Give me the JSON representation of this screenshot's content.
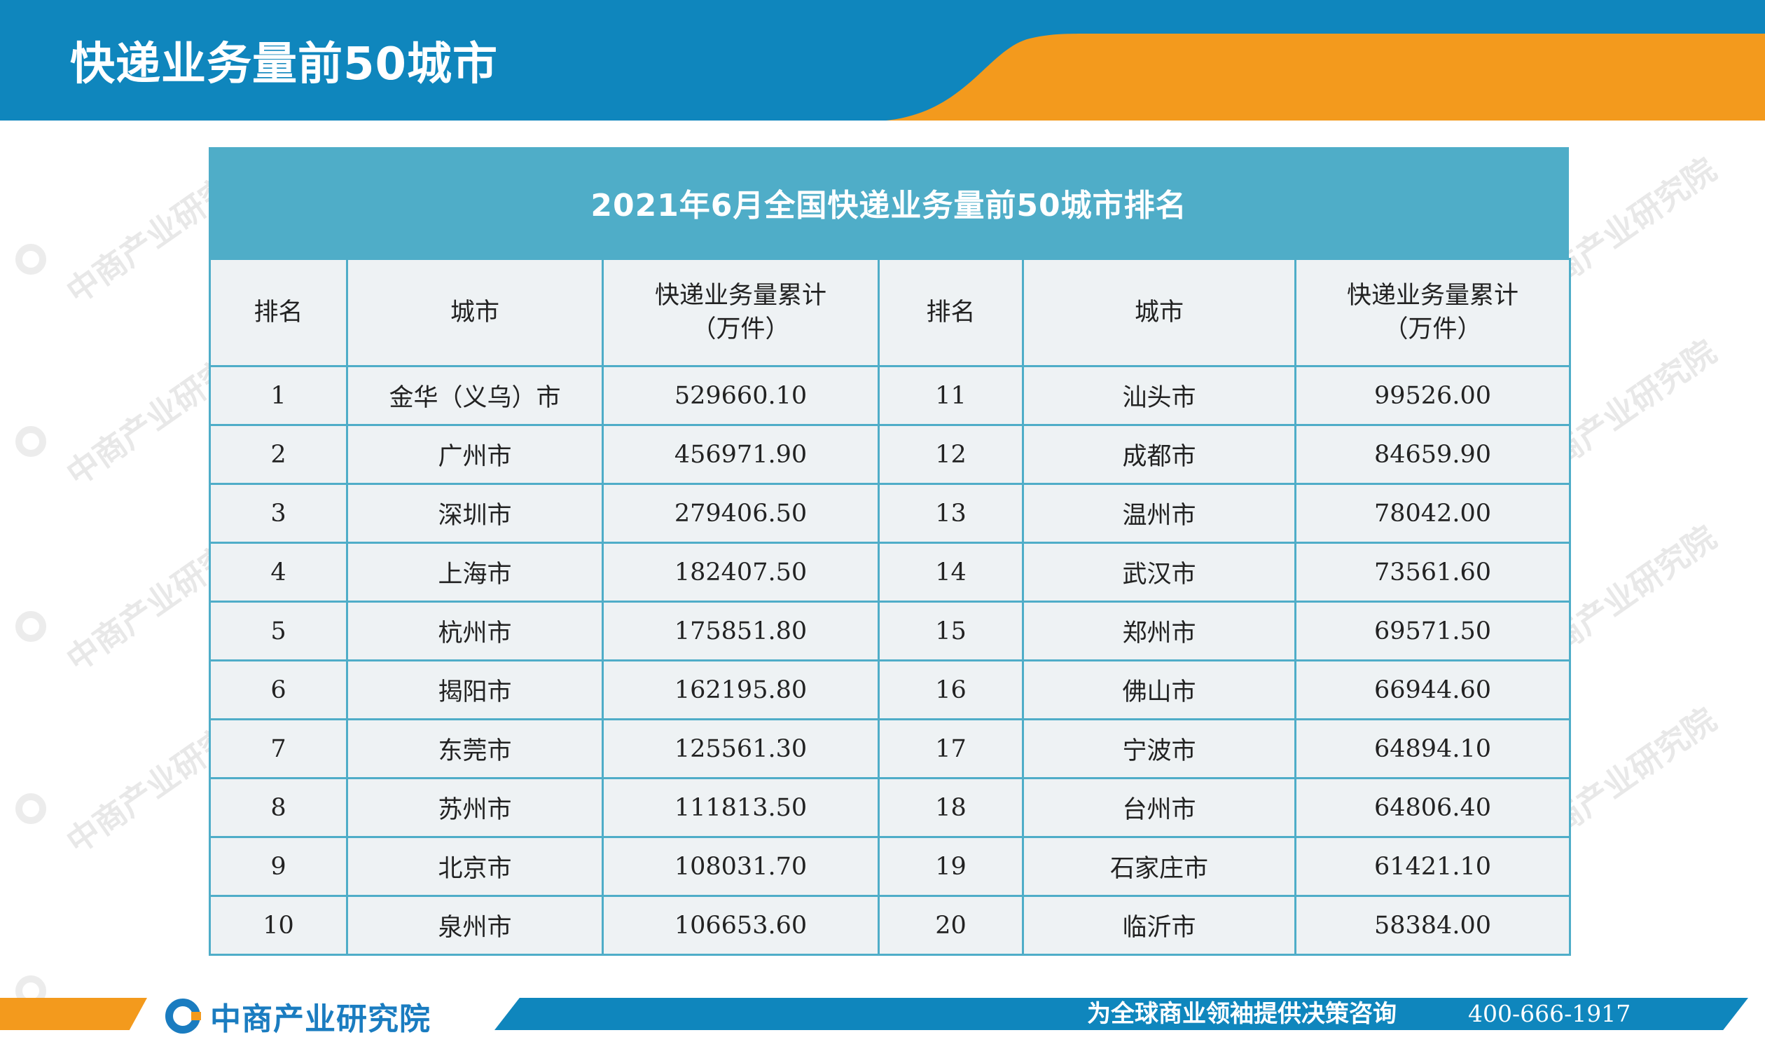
{
  "header": {
    "title": "快递业务量前50城市"
  },
  "table": {
    "title": "2021年6月全国快递业务量前50城市排名",
    "columns": {
      "rank": "排名",
      "city": "城市",
      "volume_line1": "快递业务量累计",
      "volume_line2": "（万件）"
    },
    "rows": [
      {
        "rank_a": "1",
        "city_a": "金华（义乌）市",
        "vol_a": "529660.10",
        "rank_b": "11",
        "city_b": "汕头市",
        "vol_b": "99526.00"
      },
      {
        "rank_a": "2",
        "city_a": "广州市",
        "vol_a": "456971.90",
        "rank_b": "12",
        "city_b": "成都市",
        "vol_b": "84659.90"
      },
      {
        "rank_a": "3",
        "city_a": "深圳市",
        "vol_a": "279406.50",
        "rank_b": "13",
        "city_b": "温州市",
        "vol_b": "78042.00"
      },
      {
        "rank_a": "4",
        "city_a": "上海市",
        "vol_a": "182407.50",
        "rank_b": "14",
        "city_b": "武汉市",
        "vol_b": "73561.60"
      },
      {
        "rank_a": "5",
        "city_a": "杭州市",
        "vol_a": "175851.80",
        "rank_b": "15",
        "city_b": "郑州市",
        "vol_b": "69571.50"
      },
      {
        "rank_a": "6",
        "city_a": "揭阳市",
        "vol_a": "162195.80",
        "rank_b": "16",
        "city_b": "佛山市",
        "vol_b": "66944.60"
      },
      {
        "rank_a": "7",
        "city_a": "东莞市",
        "vol_a": "125561.30",
        "rank_b": "17",
        "city_b": "宁波市",
        "vol_b": "64894.10"
      },
      {
        "rank_a": "8",
        "city_a": "苏州市",
        "vol_a": "111813.50",
        "rank_b": "18",
        "city_b": "台州市",
        "vol_b": "64806.40"
      },
      {
        "rank_a": "9",
        "city_a": "北京市",
        "vol_a": "108031.70",
        "rank_b": "19",
        "city_b": "石家庄市",
        "vol_b": "61421.10"
      },
      {
        "rank_a": "10",
        "city_a": "泉州市",
        "vol_a": "106653.60",
        "rank_b": "20",
        "city_b": "临沂市",
        "vol_b": "58384.00"
      }
    ]
  },
  "footer": {
    "logo_text": "中商产业研究院",
    "slogan": "为全球商业领袖提供决策咨询",
    "phone": "400-666-1917"
  },
  "watermark": {
    "text": "中商产业研究院",
    "logo_icon": "circle-c-logo-icon"
  },
  "colors": {
    "header_blue": "#0f86bd",
    "accent_orange": "#f39a1d",
    "table_teal": "#4fadc8",
    "cell_bg": "#eef2f4"
  }
}
